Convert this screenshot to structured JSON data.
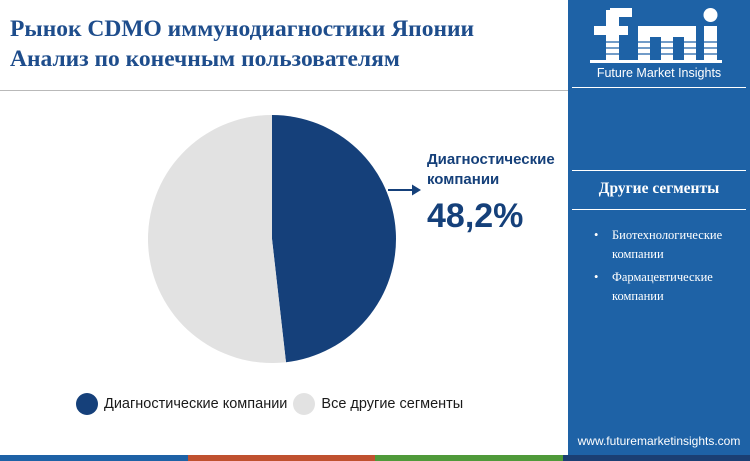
{
  "title": {
    "line1": "Рынок CDMO иммунодиагностики Японии",
    "line2": "Анализ  по конечным пользователям"
  },
  "chart_data": {
    "type": "pie",
    "slices": [
      {
        "label": "Диагностические компании",
        "value": 48.2,
        "color": "#15407a"
      },
      {
        "label": "Все другие сегменты",
        "value": 51.8,
        "color": "#e2e2e2"
      }
    ],
    "callout": {
      "label": "Диагностические компании",
      "value_text": "48,2%"
    },
    "legend_position": "bottom"
  },
  "sidebar": {
    "brand": "Future Market Insights",
    "heading": "Другие сегменты",
    "segments": [
      {
        "bullet": "•",
        "label": "Биотехнологические компании"
      },
      {
        "bullet": "•",
        "label": "Фармацевтические компании"
      }
    ],
    "url": "www.futuremarketinsights.com"
  },
  "colors": {
    "sidebar_bg": "#1e62a6",
    "title": "#1e4d8c",
    "accent_dark": "#15407a",
    "bottom_bar": [
      "#1e62a6",
      "#c0512f",
      "#4f9a3a",
      "#1b3f73"
    ]
  }
}
